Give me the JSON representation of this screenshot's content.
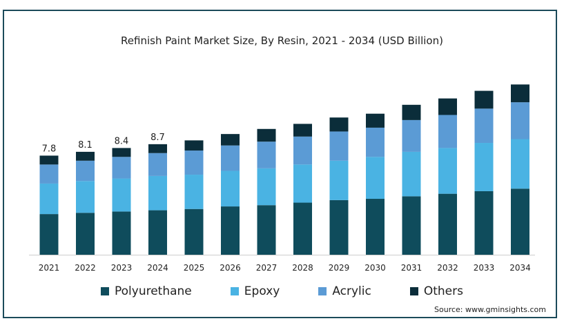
{
  "chart_data": {
    "type": "bar",
    "stacked": true,
    "title": "Refinish Paint Market Size, By Resin, 2021 - 2034 (USD Billion)",
    "categories": [
      "2021",
      "2022",
      "2023",
      "2024",
      "2025",
      "2026",
      "2027",
      "2028",
      "2029",
      "2030",
      "2031",
      "2032",
      "2033",
      "2034"
    ],
    "series": [
      {
        "name": "Polyurethane",
        "color": "#0f4c5c",
        "values": [
          3.2,
          3.3,
          3.4,
          3.5,
          3.6,
          3.8,
          3.9,
          4.1,
          4.3,
          4.4,
          4.6,
          4.8,
          5.0,
          5.2
        ]
      },
      {
        "name": "Epoxy",
        "color": "#4ab3e3",
        "values": [
          2.4,
          2.5,
          2.6,
          2.7,
          2.7,
          2.8,
          2.9,
          3.0,
          3.1,
          3.3,
          3.5,
          3.6,
          3.8,
          3.9
        ]
      },
      {
        "name": "Acrylic",
        "color": "#5b9bd5",
        "values": [
          1.5,
          1.6,
          1.7,
          1.8,
          1.9,
          2.0,
          2.1,
          2.2,
          2.3,
          2.3,
          2.5,
          2.6,
          2.7,
          2.9
        ]
      },
      {
        "name": "Others",
        "color": "#0b2d3a",
        "values": [
          0.7,
          0.7,
          0.7,
          0.7,
          0.8,
          0.9,
          1.0,
          1.0,
          1.1,
          1.1,
          1.2,
          1.3,
          1.4,
          1.4
        ]
      }
    ],
    "data_labels": {
      "2021": "7.8",
      "2022": "8.1",
      "2023": "8.4",
      "2024": "8.7"
    },
    "ylim": [
      0,
      13.8
    ],
    "grid": false,
    "legend_position": "bottom"
  },
  "source": "Source: www.gminsights.com"
}
